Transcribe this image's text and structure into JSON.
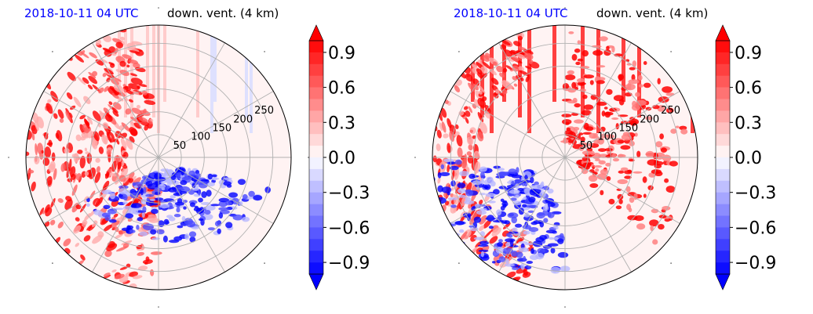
{
  "chart_data": [
    {
      "type": "heatmap",
      "projection": "polar",
      "title_left": "2018-10-11 04 UTC",
      "title_right": "down. vent. (4 km)",
      "radial_ticks": [
        "50",
        "100",
        "150",
        "200",
        "250"
      ],
      "colorbar": {
        "ticks": [
          "0.9",
          "0.6",
          "0.3",
          "0.0",
          "−0.3",
          "−0.6",
          "−0.9"
        ],
        "range": [
          -1,
          1
        ],
        "colormap": "bwr",
        "extend": "both"
      }
    },
    {
      "type": "heatmap",
      "projection": "polar",
      "title_left": "2018-10-11 04 UTC",
      "title_right": "down. vent. (4 km)",
      "radial_ticks": [
        "50",
        "100",
        "150",
        "200",
        "250"
      ],
      "colorbar": {
        "ticks": [
          "0.9",
          "0.6",
          "0.3",
          "0.0",
          "−0.3",
          "−0.6",
          "−0.9"
        ],
        "range": [
          -1,
          1
        ],
        "colormap": "bwr",
        "extend": "both"
      }
    }
  ],
  "colors": {
    "title_left": "#0000ff",
    "positive": "#ff0000",
    "negative": "#0000ff",
    "grid": "#b0b0b0"
  }
}
